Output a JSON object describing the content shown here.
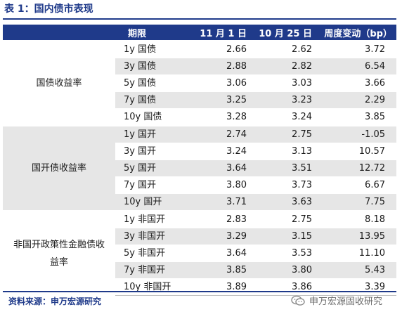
{
  "title": "表 1：国内债市表现",
  "header": {
    "col_term": "期限",
    "col_nov1": "11 月 1 日",
    "col_nov25": "10 月 25 日",
    "col_change": "周度变动（bp）"
  },
  "groups": [
    {
      "label": "国债收益率",
      "rows": [
        {
          "term": "1y 国债",
          "nov1": "2.66",
          "oct25": "2.62",
          "change": "3.72"
        },
        {
          "term": "3y 国债",
          "nov1": "2.88",
          "oct25": "2.82",
          "change": "6.54"
        },
        {
          "term": "5y 国债",
          "nov1": "3.06",
          "oct25": "3.03",
          "change": "3.66"
        },
        {
          "term": "7y 国债",
          "nov1": "3.25",
          "oct25": "3.23",
          "change": "2.29"
        },
        {
          "term": "10y 国债",
          "nov1": "3.28",
          "oct25": "3.24",
          "change": "3.85"
        }
      ]
    },
    {
      "label": "国开债收益率",
      "rows": [
        {
          "term": "1y 国开",
          "nov1": "2.74",
          "oct25": "2.75",
          "change": "-1.05"
        },
        {
          "term": "3y 国开",
          "nov1": "3.24",
          "oct25": "3.13",
          "change": "10.57"
        },
        {
          "term": "5y 国开",
          "nov1": "3.64",
          "oct25": "3.51",
          "change": "12.72"
        },
        {
          "term": "7y 国开",
          "nov1": "3.80",
          "oct25": "3.73",
          "change": "6.67"
        },
        {
          "term": "10y 国开",
          "nov1": "3.71",
          "oct25": "3.63",
          "change": "7.75"
        }
      ]
    },
    {
      "label": "非国开政策性金融债收益率",
      "rows": [
        {
          "term": "1y 非国开",
          "nov1": "2.83",
          "oct25": "2.75",
          "change": "8.18"
        },
        {
          "term": "3y 非国开",
          "nov1": "3.29",
          "oct25": "3.15",
          "change": "13.95"
        },
        {
          "term": "5y 非国开",
          "nov1": "3.64",
          "oct25": "3.53",
          "change": "11.10"
        },
        {
          "term": "7y 非国开",
          "nov1": "3.85",
          "oct25": "3.80",
          "change": "5.43"
        },
        {
          "term": "10y 非国开",
          "nov1": "3.89",
          "oct25": "3.86",
          "change": "3.39"
        }
      ]
    }
  ],
  "source": "资料来源：申万宏源研究",
  "watermark": {
    "icon": "wechat-icon",
    "text": "申万宏源固收研究"
  }
}
